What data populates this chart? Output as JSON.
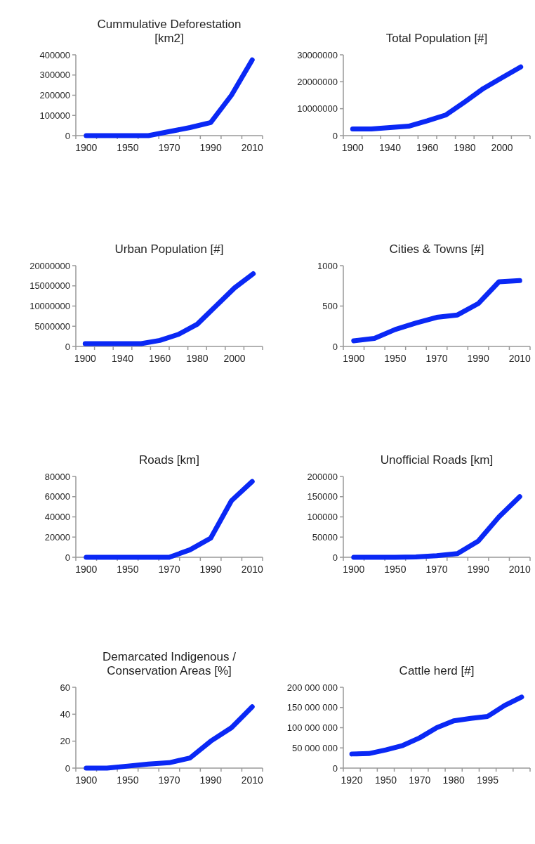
{
  "chart_data": [
    {
      "type": "line",
      "title": "Cummulative Deforestation [km2]",
      "categories": [
        "1900",
        null,
        "1950",
        null,
        "1970",
        null,
        "1990",
        null,
        "2010"
      ],
      "values": [
        0,
        0,
        0,
        0,
        20000,
        40000,
        65000,
        200000,
        375000
      ],
      "color": "#0a28f5",
      "ylim": [
        0,
        400000
      ],
      "yticks": [
        0,
        100000,
        200000,
        300000,
        400000
      ]
    },
    {
      "type": "line",
      "title": "Total Population [#]",
      "categories": [
        "1900",
        null,
        "1940",
        null,
        "1960",
        null,
        "1980",
        null,
        "2000",
        null
      ],
      "values": [
        2500000,
        2500000,
        3000000,
        3500000,
        5500000,
        7700000,
        12500000,
        17500000,
        21500000,
        25500000
      ],
      "color": "#0a28f5",
      "ylim": [
        0,
        30000000
      ],
      "yticks": [
        0,
        10000000,
        20000000,
        30000000
      ]
    },
    {
      "type": "line",
      "title": "Urban Population [#]",
      "categories": [
        "1900",
        null,
        "1940",
        null,
        "1960",
        null,
        "1980",
        null,
        "2000",
        null
      ],
      "values": [
        700000,
        700000,
        700000,
        700000,
        1500000,
        3000000,
        5500000,
        10000000,
        14500000,
        18000000
      ],
      "color": "#0a28f5",
      "ylim": [
        0,
        20000000
      ],
      "yticks": [
        0,
        5000000,
        10000000,
        15000000,
        20000000
      ]
    },
    {
      "type": "line",
      "title": "Cities & Towns [#]",
      "categories": [
        "1900",
        null,
        "1950",
        null,
        "1970",
        null,
        "1990",
        null,
        "2010"
      ],
      "values": [
        70,
        100,
        210,
        290,
        360,
        390,
        530,
        800,
        815
      ],
      "color": "#0a28f5",
      "ylim": [
        0,
        1000
      ],
      "yticks": [
        0,
        500,
        1000
      ]
    },
    {
      "type": "line",
      "title": "Roads [km]",
      "categories": [
        "1900",
        null,
        "1950",
        null,
        "1970",
        null,
        "1990",
        null,
        "2010"
      ],
      "values": [
        0,
        0,
        0,
        0,
        0,
        7400,
        19000,
        56000,
        75000
      ],
      "color": "#0a28f5",
      "ylim": [
        0,
        80000
      ],
      "yticks": [
        0,
        20000,
        40000,
        60000,
        80000
      ]
    },
    {
      "type": "line",
      "title": "Unofficial Roads [km]",
      "categories": [
        "1900",
        null,
        "1950",
        null,
        "1970",
        null,
        "1990",
        null,
        "2010"
      ],
      "values": [
        0,
        0,
        0,
        1000,
        4000,
        9000,
        40000,
        100000,
        150000
      ],
      "color": "#0a28f5",
      "ylim": [
        0,
        200000
      ],
      "yticks": [
        0,
        50000,
        100000,
        150000,
        200000
      ]
    },
    {
      "type": "line",
      "title": "Demarcated Indigenous / Conservation Areas  [%]",
      "categories": [
        "1900",
        null,
        "1950",
        null,
        "1970",
        null,
        "1990",
        null,
        "2010"
      ],
      "values": [
        0,
        0,
        1.5,
        3,
        4,
        7.5,
        20,
        30,
        45.5
      ],
      "color": "#0a28f5",
      "ylim": [
        0,
        60
      ],
      "yticks": [
        0,
        20,
        40,
        60
      ]
    },
    {
      "type": "line",
      "title": "Cattle herd [#]",
      "categories": [
        "1920",
        null,
        "1950",
        null,
        "1970",
        null,
        "1980",
        null,
        "1995",
        null,
        null
      ],
      "values": [
        35000000,
        36000000,
        45000000,
        56000000,
        75000000,
        100000000,
        117000000,
        123000000,
        128000000,
        155000000,
        176000000
      ],
      "color": "#0a28f5",
      "ylim": [
        0,
        200000000
      ],
      "yticks": [
        0,
        {
          "value": 50000000,
          "label": "50 000 000"
        },
        {
          "value": 100000000,
          "label": "100 000 000"
        },
        {
          "value": 150000000,
          "label": "150 000 000"
        },
        {
          "value": 200000000,
          "label": "200 000 000"
        }
      ]
    }
  ]
}
